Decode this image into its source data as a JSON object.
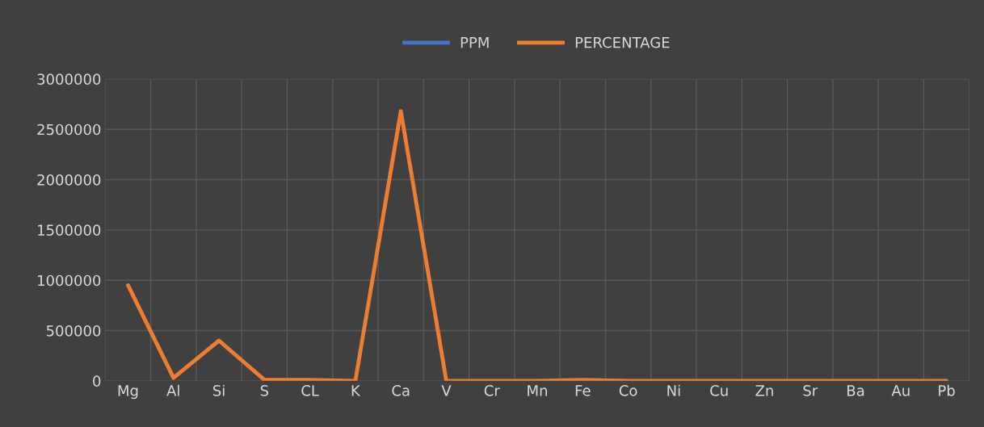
{
  "chart_data": {
    "type": "line",
    "categories": [
      "Mg",
      "Al",
      "Si",
      "S",
      "CL",
      "K",
      "Ca",
      "V",
      "Cr",
      "Mn",
      "Fe",
      "Co",
      "Ni",
      "Cu",
      "Zn",
      "Sr",
      "Ba",
      "Au",
      "Pb"
    ],
    "series": [
      {
        "name": "PPM",
        "color": "#4472c4",
        "values": [
          null,
          null,
          null,
          null,
          null,
          null,
          null,
          null,
          null,
          null,
          null,
          null,
          null,
          null,
          null,
          null,
          null,
          null,
          null
        ]
      },
      {
        "name": "PERCENTAGE",
        "color": "#ed7d31",
        "values": [
          950000,
          30000,
          400000,
          10000,
          10000,
          0,
          2680000,
          0,
          0,
          0,
          10000,
          0,
          0,
          0,
          0,
          0,
          0,
          0,
          0
        ]
      }
    ],
    "ylim": [
      0,
      3000000
    ],
    "yticks": [
      0,
      500000,
      1000000,
      1500000,
      2000000,
      2500000,
      3000000
    ],
    "grid": true,
    "legend": "top",
    "marker": "none",
    "line_style": "solid"
  }
}
